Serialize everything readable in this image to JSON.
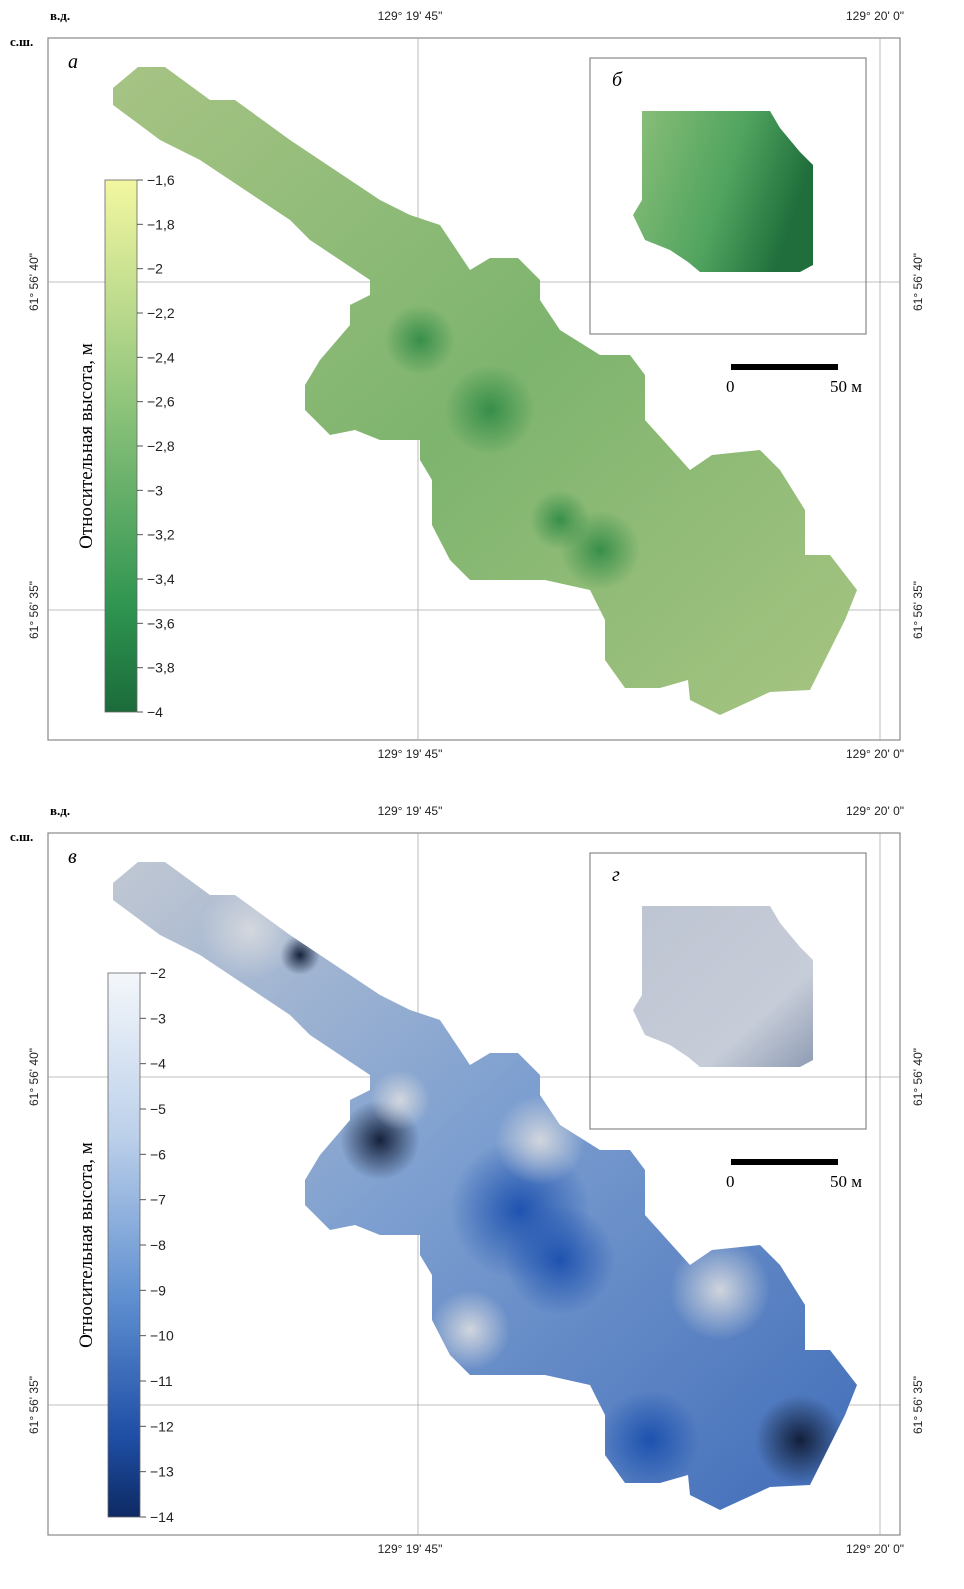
{
  "panels": [
    {
      "label": "а",
      "inset_label": "б",
      "header_east": "в.д.",
      "header_north": "с.ш.",
      "lon_labels": [
        "129° 19' 45\"",
        "129° 20' 0\""
      ],
      "lat_labels": [
        "61° 56' 40\"",
        "61° 56' 35\""
      ],
      "legend_title": "Относительная высота, м",
      "legend_ticks": [
        "−1,6",
        "−1,8",
        "−2",
        "−2,2",
        "−2,4",
        "−2,6",
        "−2,8",
        "−3",
        "−3,2",
        "−3,4",
        "−3,6",
        "−3,8",
        "−4"
      ],
      "legend_range": [
        -1.6,
        -4
      ],
      "colors": {
        "high": "#f3f7a0",
        "mid": "#7fbf7a",
        "low": "#1b6b3a"
      },
      "scale_bar": {
        "start": "0",
        "end": "50 м"
      }
    },
    {
      "label": "в",
      "inset_label": "г",
      "header_east": "в.д.",
      "header_north": "с.ш.",
      "lon_labels": [
        "129° 19' 45\"",
        "129° 20' 0\""
      ],
      "lat_labels": [
        "61° 56' 40\"",
        "61° 56' 35\""
      ],
      "legend_title": "Относительная высота, м",
      "legend_ticks": [
        "−2",
        "−3",
        "−4",
        "−5",
        "−6",
        "−7",
        "−8",
        "−9",
        "−10",
        "−11",
        "−12",
        "−13",
        "−14"
      ],
      "legend_range": [
        -2,
        -14
      ],
      "colors": {
        "high": "#f4f7fb",
        "mid": "#6f97d0",
        "low": "#0d2a63"
      },
      "scale_bar": {
        "start": "0",
        "end": "50 м"
      }
    }
  ]
}
